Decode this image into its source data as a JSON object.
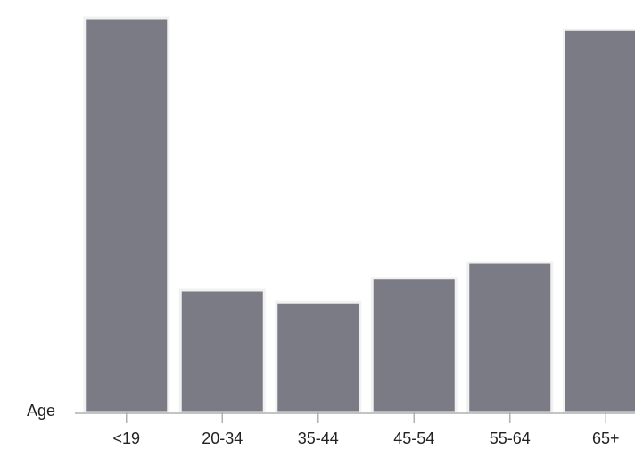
{
  "chart_data": {
    "type": "bar",
    "xlabel": "Age",
    "ylabel": "",
    "categories": [
      "<19",
      "20-34",
      "35-44",
      "45-54",
      "55-64",
      "65+"
    ],
    "values": [
      100,
      31,
      28,
      34,
      38,
      97
    ],
    "ylim": [
      0,
      100
    ],
    "grid": false,
    "colors": {
      "bar": "#7b7b86",
      "bar_outline": "#f1f1f1",
      "axis": "#b0b0b0"
    }
  }
}
